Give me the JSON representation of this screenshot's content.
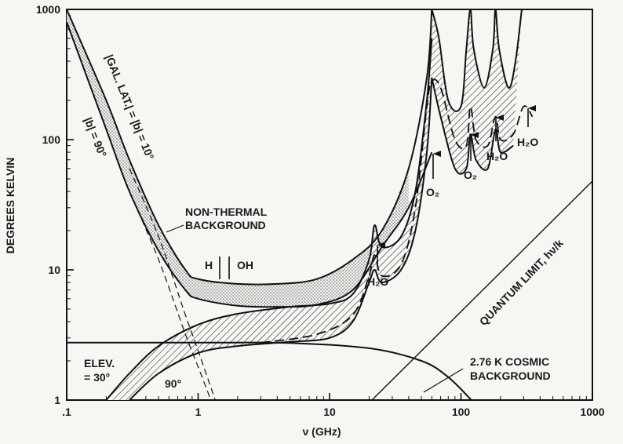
{
  "chart_data": {
    "type": "line",
    "xlabel": "ν (GHz)",
    "ylabel": "DEGREES KELVIN",
    "xscale": "log",
    "yscale": "log",
    "xlim": [
      0.1,
      1000
    ],
    "ylim": [
      1,
      1000
    ],
    "x_tick_labels": [
      ".1",
      "1",
      "10",
      "100",
      "1000"
    ],
    "y_tick_labels": [
      "1",
      "10",
      "100",
      "1000"
    ],
    "x_ticks": [
      0.1,
      1,
      10,
      100,
      1000
    ],
    "y_ticks": [
      1,
      10,
      100,
      1000
    ],
    "series": [
      {
        "name": "Galactic background |b| = 90° (lower)",
        "style": "solid",
        "points": [
          [
            0.1,
            800
          ],
          [
            0.2,
            120
          ],
          [
            0.3,
            40
          ],
          [
            0.5,
            14
          ],
          [
            0.8,
            7
          ],
          [
            1,
            6
          ],
          [
            2,
            5.3
          ],
          [
            4,
            5.2
          ],
          [
            8,
            5.4
          ],
          [
            15,
            7
          ],
          [
            25,
            15
          ],
          [
            40,
            30
          ],
          [
            60,
            80
          ]
        ]
      },
      {
        "name": "Galactic background |b| = 10° (upper)",
        "style": "solid",
        "points": [
          [
            0.1,
            1000
          ],
          [
            0.2,
            200
          ],
          [
            0.3,
            70
          ],
          [
            0.5,
            22
          ],
          [
            0.8,
            10
          ],
          [
            1,
            8.5
          ],
          [
            2,
            7.8
          ],
          [
            4,
            7.8
          ],
          [
            8,
            8.5
          ],
          [
            15,
            12
          ],
          [
            25,
            20
          ],
          [
            40,
            60
          ],
          [
            55,
            300
          ],
          [
            60,
            1000
          ]
        ]
      },
      {
        "name": "Elevation 30°",
        "style": "solid",
        "points": [
          [
            0.2,
            1
          ],
          [
            0.3,
            1.6
          ],
          [
            0.5,
            2.6
          ],
          [
            1,
            3.8
          ],
          [
            2,
            4.6
          ],
          [
            5,
            5.2
          ],
          [
            10,
            5.5
          ],
          [
            15,
            6.5
          ],
          [
            20,
            12
          ],
          [
            22,
            22
          ],
          [
            25,
            15
          ],
          [
            35,
            18
          ],
          [
            45,
            40
          ],
          [
            55,
            200
          ],
          [
            60,
            600
          ]
        ]
      },
      {
        "name": "Elevation 90°",
        "style": "solid",
        "points": [
          [
            0.3,
            1
          ],
          [
            0.5,
            1.6
          ],
          [
            1,
            2.3
          ],
          [
            2,
            2.6
          ],
          [
            5,
            2.8
          ],
          [
            10,
            3
          ],
          [
            15,
            4
          ],
          [
            20,
            8
          ],
          [
            22,
            10
          ],
          [
            25,
            8
          ],
          [
            35,
            10
          ],
          [
            45,
            20
          ],
          [
            55,
            80
          ],
          [
            60,
            300
          ]
        ]
      },
      {
        "name": "2.76 K cosmic background",
        "style": "solid",
        "points": [
          [
            0.1,
            2.76
          ],
          [
            1,
            2.76
          ],
          [
            5,
            2.74
          ],
          [
            20,
            2.5
          ],
          [
            50,
            2
          ],
          [
            80,
            1.5
          ],
          [
            120,
            1
          ]
        ]
      },
      {
        "name": "Atmosphere + cosmic (dashed)",
        "style": "dashed",
        "points": [
          [
            3,
            2.76
          ],
          [
            8,
            3.2
          ],
          [
            15,
            4.5
          ],
          [
            20,
            9
          ],
          [
            22,
            13
          ],
          [
            25,
            9
          ],
          [
            35,
            11
          ],
          [
            45,
            30
          ],
          [
            55,
            180
          ],
          [
            60,
            280
          ],
          [
            70,
            250
          ],
          [
            90,
            100
          ],
          [
            110,
            90
          ],
          [
            118,
            180
          ],
          [
            130,
            100
          ],
          [
            160,
            90
          ],
          [
            183,
            150
          ],
          [
            200,
            100
          ],
          [
            250,
            110
          ],
          [
            300,
            180
          ],
          [
            350,
            150
          ]
        ]
      },
      {
        "name": "Quantum limit hν/k",
        "style": "thin",
        "points": [
          [
            21,
            1
          ],
          [
            100,
            4.8
          ],
          [
            1000,
            48
          ]
        ]
      }
    ],
    "annotations": [
      "NON-THERMAL",
      "BACKGROUND",
      "|GAL. LAT.| = |b| = 10°",
      "|b| = 90°",
      "ELEV.",
      "= 30°",
      "90°",
      "H",
      "OH",
      "H2O",
      "O2",
      "QUANTUM LIMIT, hν/k",
      "2.76 K COSMIC",
      "BACKGROUND"
    ],
    "grid": false,
    "legend": "none"
  },
  "labels": {
    "non_thermal_1": "NON-THERMAL",
    "non_thermal_2": "BACKGROUND",
    "gal_lat": "|GAL. LAT.| = |b| = 10°",
    "b90": "|b| = 90°",
    "elev_1": "ELEV.",
    "elev_2": "= 30°",
    "elev_90": "90°",
    "h_line": "H",
    "oh_line": "OH",
    "h2o_22": "H₂O",
    "o2_60": "O₂",
    "o2_118": "O₂",
    "h2o_183": "H₂O",
    "h2o_325": "H₂O",
    "quantum": "QUANTUM LIMIT, hν/k",
    "cmb_1": "2.76 K COSMIC",
    "cmb_2": "BACKGROUND"
  }
}
